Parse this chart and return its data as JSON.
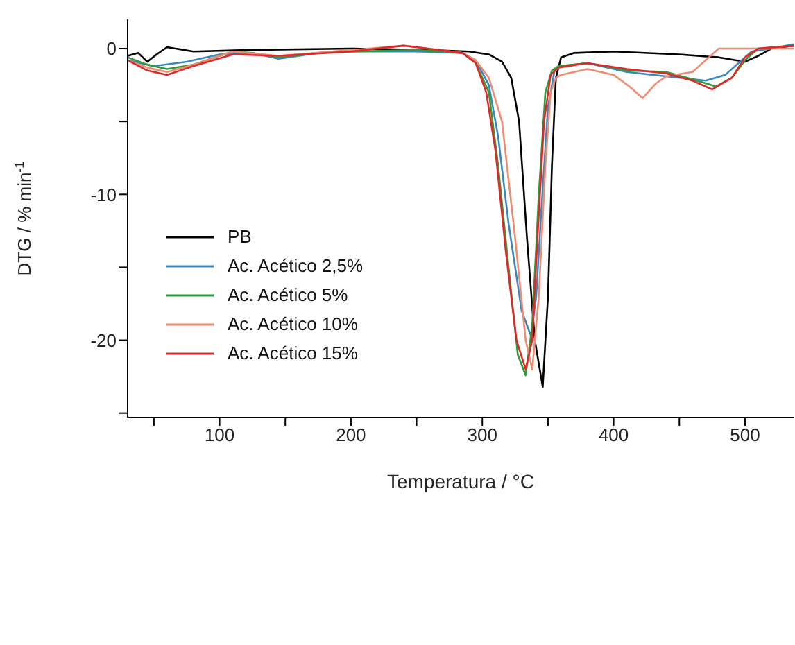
{
  "chart_data": {
    "type": "line",
    "xlabel": "Temperatura / °C",
    "ylabel": "DTG / % min$^{-1}$",
    "xlim": [
      30,
      537
    ],
    "ylim": [
      -25.3,
      2
    ],
    "xticks": [
      {
        "value": 50,
        "label": null
      },
      100,
      {
        "value": 150,
        "label": null
      },
      200,
      {
        "value": 250,
        "label": null
      },
      300,
      {
        "value": 350,
        "label": null
      },
      400,
      {
        "value": 450,
        "label": null
      },
      500
    ],
    "yticks": [
      {
        "value": -25,
        "label": null
      },
      -20,
      {
        "value": -15,
        "label": null
      },
      -10,
      {
        "value": -5,
        "label": null
      },
      0
    ],
    "legend": "center left",
    "marker": "none",
    "line_style": "solid",
    "series": [
      {
        "name": "PB",
        "color": "#000000",
        "x": [
          30,
          38,
          45,
          52,
          60,
          80,
          120,
          200,
          260,
          290,
          305,
          315,
          322,
          328,
          334,
          340,
          346,
          350,
          353,
          356,
          360,
          370,
          400,
          450,
          480,
          500,
          510,
          520,
          537
        ],
        "values": [
          -0.5,
          -0.3,
          -0.9,
          -0.4,
          0.1,
          -0.2,
          -0.1,
          0,
          -0.1,
          -0.2,
          -0.4,
          -0.9,
          -2,
          -5,
          -13,
          -20,
          -23.2,
          -17,
          -8,
          -2,
          -0.6,
          -0.3,
          -0.2,
          -0.4,
          -0.6,
          -0.9,
          -0.5,
          0,
          0.2
        ]
      },
      {
        "name": "Ac. Acético 2,5%",
        "color": "#3a87c0",
        "x": [
          30,
          50,
          75,
          100,
          125,
          145,
          175,
          200,
          250,
          285,
          295,
          305,
          312,
          320,
          330,
          337,
          341,
          345,
          350,
          355,
          360,
          380,
          410,
          440,
          470,
          485,
          495,
          505,
          520,
          537
        ],
        "values": [
          -0.8,
          -1.2,
          -0.9,
          -0.4,
          -0.3,
          -0.7,
          -0.3,
          -0.2,
          -0.2,
          -0.3,
          -0.8,
          -2.5,
          -6,
          -12,
          -18,
          -19.7,
          -17,
          -11,
          -4,
          -1.5,
          -1.2,
          -1,
          -1.6,
          -1.9,
          -2.2,
          -1.8,
          -1,
          -0.2,
          0,
          0.3
        ]
      },
      {
        "name": "Ac. Acético 5%",
        "color": "#2e9a3a",
        "x": [
          30,
          45,
          60,
          80,
          110,
          125,
          145,
          175,
          200,
          250,
          285,
          295,
          305,
          312,
          320,
          327,
          333,
          338,
          343,
          348,
          353,
          358,
          380,
          410,
          440,
          460,
          478,
          490,
          500,
          510,
          537
        ],
        "values": [
          -0.6,
          -1.1,
          -1.4,
          -1.1,
          -0.2,
          -0.3,
          -0.6,
          -0.3,
          -0.2,
          -0.1,
          -0.3,
          -1,
          -3,
          -8,
          -15,
          -21,
          -22.4,
          -19,
          -10,
          -3,
          -1.5,
          -1.2,
          -1,
          -1.5,
          -1.6,
          -2.1,
          -2.6,
          -2,
          -0.8,
          0,
          0.2
        ]
      },
      {
        "name": "Ac. Acético 10%",
        "color": "#f08a70",
        "x": [
          30,
          45,
          60,
          80,
          110,
          145,
          200,
          240,
          250,
          285,
          295,
          305,
          315,
          325,
          333,
          338,
          343,
          348,
          352,
          356,
          360,
          380,
          400,
          412,
          422,
          432,
          440,
          460,
          470,
          480,
          537
        ],
        "values": [
          -0.8,
          -1.3,
          -1.6,
          -1.1,
          -0.2,
          -0.5,
          -0.1,
          0.2,
          0.1,
          -0.3,
          -0.8,
          -2,
          -5,
          -13,
          -20,
          -22,
          -17,
          -8,
          -3,
          -2,
          -1.8,
          -1.4,
          -1.8,
          -2.6,
          -3.4,
          -2.4,
          -1.9,
          -1.6,
          -0.8,
          0,
          0
        ]
      },
      {
        "name": "Ac. Acético 15%",
        "color": "#e02828",
        "x": [
          30,
          45,
          60,
          80,
          110,
          145,
          200,
          240,
          250,
          285,
          295,
          303,
          310,
          318,
          326,
          333,
          338,
          342,
          347,
          352,
          358,
          380,
          410,
          440,
          460,
          475,
          490,
          500,
          510,
          537
        ],
        "values": [
          -0.8,
          -1.5,
          -1.8,
          -1.2,
          -0.4,
          -0.5,
          -0.2,
          0.2,
          0.1,
          -0.3,
          -1,
          -3,
          -7,
          -14,
          -20,
          -22,
          -20,
          -13,
          -5,
          -1.8,
          -1.3,
          -1,
          -1.4,
          -1.7,
          -2.2,
          -2.8,
          -2,
          -0.6,
          0,
          0.2
        ]
      }
    ]
  }
}
